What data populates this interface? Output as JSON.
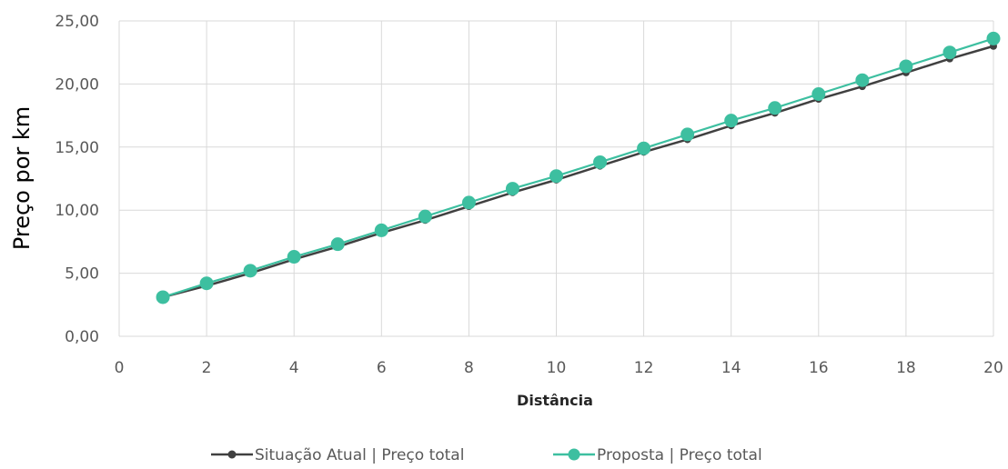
{
  "chart_data": {
    "type": "line",
    "title": "",
    "xlabel": "Distância",
    "ylabel": "Preço por km",
    "xlim": [
      0,
      20
    ],
    "ylim": [
      0,
      25
    ],
    "x_ticks": [
      "0",
      "2",
      "4",
      "6",
      "8",
      "10",
      "12",
      "14",
      "16",
      "18",
      "20"
    ],
    "y_ticks": [
      "0,00",
      "5,00",
      "10,00",
      "15,00",
      "20,00",
      "25,00"
    ],
    "grid": true,
    "legend_position": "bottom",
    "x": [
      1,
      2,
      3,
      4,
      5,
      6,
      7,
      8,
      9,
      10,
      11,
      12,
      13,
      14,
      15,
      16,
      17,
      18,
      19,
      20
    ],
    "series": [
      {
        "name": "Situação Atual | Preço total",
        "color": "#404040",
        "values": [
          3.1,
          4.0,
          5.0,
          6.1,
          7.1,
          8.2,
          9.2,
          10.3,
          11.4,
          12.4,
          13.5,
          14.6,
          15.6,
          16.7,
          17.7,
          18.8,
          19.8,
          20.9,
          22.0,
          23.0
        ]
      },
      {
        "name": "Proposta | Preço total",
        "color": "#3dbfa0",
        "values": [
          3.1,
          4.2,
          5.2,
          6.3,
          7.3,
          8.4,
          9.5,
          10.6,
          11.7,
          12.7,
          13.8,
          14.9,
          16.0,
          17.1,
          18.1,
          19.2,
          20.3,
          21.4,
          22.5,
          23.6
        ]
      }
    ]
  }
}
